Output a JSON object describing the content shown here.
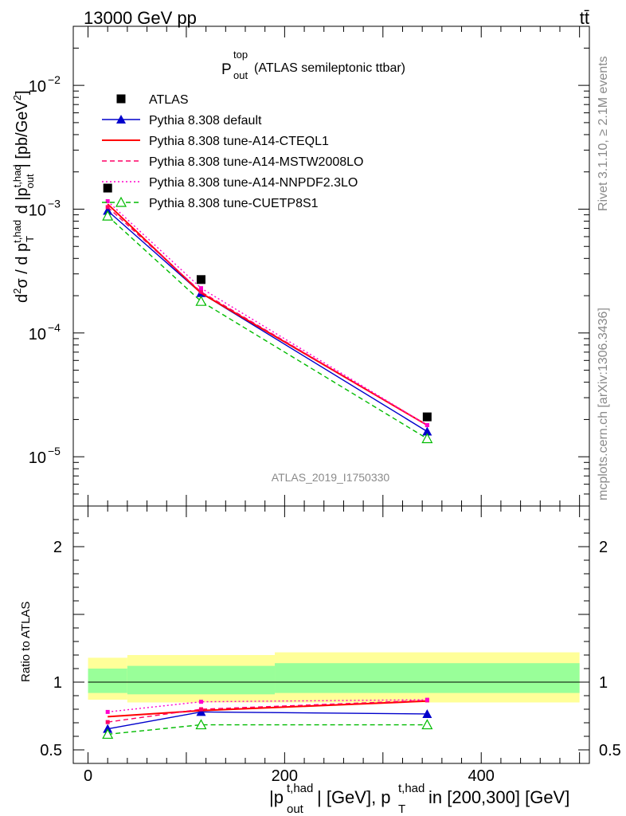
{
  "header": {
    "energy_label": "13000 GeV pp",
    "process_label": "tt̄"
  },
  "side_labels": {
    "rivet": "Rivet 3.1.10, ≥ 2.1M events",
    "mcplots": "mcplots.cern.ch [arXiv:1306.3436]"
  },
  "watermark": "ATLAS_2019_I1750330",
  "plot_title": {
    "main": "P",
    "sup": "top",
    "sub": "out",
    "rest": " (ATLAS semileptonic ttbar)"
  },
  "upper_axis": {
    "ylabel": "d²σ / d p_T^{t,had} d |p_out^{t,had}| [pb/GeV²]",
    "scale": "log",
    "ylim": [
      4e-06,
      0.03
    ],
    "tick_labels": [
      {
        "base": "10",
        "exp": "−2",
        "value": 0.01
      },
      {
        "base": "10",
        "exp": "−3",
        "value": 0.001
      },
      {
        "base": "10",
        "exp": "−4",
        "value": 0.0001
      },
      {
        "base": "10",
        "exp": "−5",
        "value": 1e-05
      }
    ]
  },
  "lower_axis": {
    "ylabel": "Ratio to ATLAS",
    "ylim": [
      0.4,
      2.3
    ],
    "tick_labels": [
      "2",
      "1",
      "0.5"
    ],
    "tick_values": [
      2,
      1,
      0.5
    ]
  },
  "x_axis": {
    "label_parts": [
      "|p",
      "t,had",
      "out",
      "| [GeV], p",
      "t,had",
      "T",
      " in [200,300] [GeV]"
    ],
    "xlim": [
      -15,
      510
    ],
    "tick_labels": [
      "0",
      "200",
      "400"
    ],
    "tick_values": [
      0,
      200,
      400
    ]
  },
  "chart_data": {
    "type": "line",
    "x": [
      20,
      115,
      345
    ],
    "bins": [
      [
        0,
        40
      ],
      [
        40,
        190
      ],
      [
        190,
        500
      ]
    ],
    "series": [
      {
        "name": "ATLAS",
        "values": [
          0.00148,
          0.00027,
          2.1e-05
        ],
        "color": "#000000",
        "marker": "square",
        "style": "points"
      },
      {
        "name": "Pythia 8.308 default",
        "values": [
          0.00097,
          0.00021,
          1.6e-05
        ],
        "ratio": [
          0.655,
          0.78,
          0.765
        ],
        "color": "#0000cc",
        "marker": "triangle",
        "style": "solid"
      },
      {
        "name": "Pythia 8.308 tune-A14-CTEQL1",
        "values": [
          0.0011,
          0.00021,
          1.8e-05
        ],
        "ratio": [
          0.745,
          0.79,
          0.86
        ],
        "color": "#ff0000",
        "marker": "none",
        "style": "solid"
      },
      {
        "name": "Pythia 8.308 tune-A14-MSTW2008LO",
        "values": [
          0.00104,
          0.000215,
          1.8e-05
        ],
        "ratio": [
          0.705,
          0.8,
          0.865
        ],
        "color": "#ff0066",
        "marker": "dot",
        "style": "dashed"
      },
      {
        "name": "Pythia 8.308 tune-A14-NNPDF2.3LO",
        "values": [
          0.00116,
          0.00023,
          1.8e-05
        ],
        "ratio": [
          0.78,
          0.855,
          0.87
        ],
        "color": "#ff00cc",
        "marker": "dot",
        "style": "dotted"
      },
      {
        "name": "Pythia 8.308 tune-CUETP8S1",
        "values": [
          0.00088,
          0.00018,
          1.4e-05
        ],
        "ratio": [
          0.615,
          0.685,
          0.685
        ],
        "color": "#00bb00",
        "marker": "open-triangle",
        "style": "dashed"
      }
    ],
    "uncertainty_bands": {
      "total_yellow": [
        [
          0.87,
          1.18
        ],
        [
          0.85,
          1.2
        ],
        [
          0.85,
          1.22
        ]
      ],
      "stat_green": [
        [
          0.92,
          1.1
        ],
        [
          0.91,
          1.12
        ],
        [
          0.92,
          1.14
        ]
      ]
    },
    "colors": {
      "band_yellow": "#ffff99",
      "band_green": "#99ff99"
    }
  }
}
